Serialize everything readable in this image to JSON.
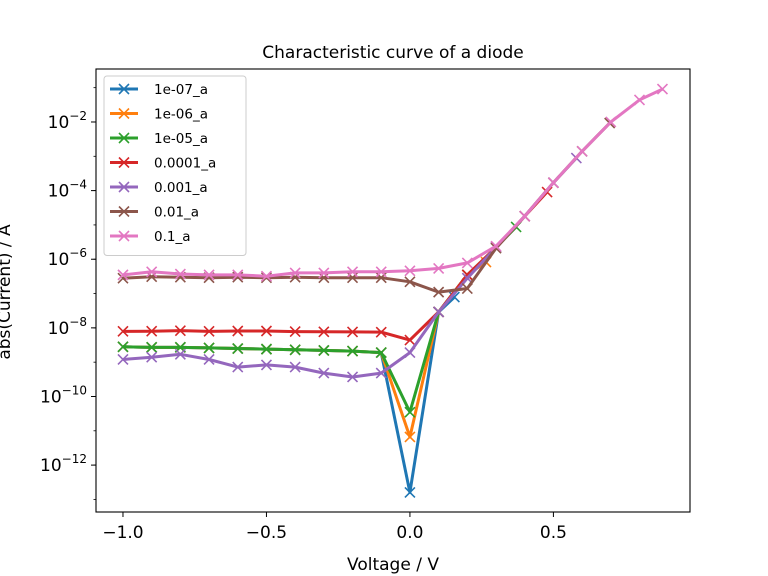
{
  "chart_data": {
    "type": "line",
    "title": "Characteristic curve of a diode",
    "xlabel": "Voltage / V",
    "ylabel": "abs(Current) / A",
    "xscale": "linear",
    "yscale": "log",
    "xlim": [
      -1.094,
      0.976
    ],
    "ylim": [
      4.3e-14,
      0.35
    ],
    "xticks": [
      -1.0,
      -0.5,
      0.0,
      0.5
    ],
    "xtick_labels": [
      "−1.0",
      "−0.5",
      "0.0",
      "0.5"
    ],
    "yticks": [
      1e-12,
      1e-10,
      1e-08,
      1e-06,
      0.0001,
      0.01
    ],
    "ytick_labels": [
      {
        "base": "10",
        "exp": "−12"
      },
      {
        "base": "10",
        "exp": "−10"
      },
      {
        "base": "10",
        "exp": "−8"
      },
      {
        "base": "10",
        "exp": "−6"
      },
      {
        "base": "10",
        "exp": "−4"
      },
      {
        "base": "10",
        "exp": "−2"
      }
    ],
    "grid": false,
    "legend_position": "top-left",
    "marker": "x",
    "series": [
      {
        "name": "1e-07_a",
        "color": "#1f77b4",
        "x": [
          -1.0,
          -0.9,
          -0.8,
          -0.7,
          -0.6,
          -0.5,
          -0.4,
          -0.3,
          -0.2,
          -0.1,
          0.0,
          0.1,
          0.155
        ],
        "y": [
          2.8e-09,
          2.7e-09,
          2.7e-09,
          2.6e-09,
          2.5e-09,
          2.4e-09,
          2.3e-09,
          2.2e-09,
          2.1e-09,
          1.9e-09,
          1.6e-13,
          2.9e-08,
          7.9e-08
        ]
      },
      {
        "name": "1e-06_a",
        "color": "#ff7f0e",
        "x": [
          -1.0,
          -0.9,
          -0.8,
          -0.7,
          -0.6,
          -0.5,
          -0.4,
          -0.3,
          -0.2,
          -0.1,
          0.0,
          0.1,
          0.2,
          0.265
        ],
        "y": [
          2.8e-09,
          2.7e-09,
          2.7e-09,
          2.6e-09,
          2.5e-09,
          2.4e-09,
          2.3e-09,
          2.2e-09,
          2.1e-09,
          1.9e-09,
          6.6e-12,
          2.9e-08,
          3.5e-07,
          8.3e-07
        ]
      },
      {
        "name": "1e-05_a",
        "color": "#2ca02c",
        "x": [
          -1.0,
          -0.9,
          -0.8,
          -0.7,
          -0.6,
          -0.5,
          -0.4,
          -0.3,
          -0.2,
          -0.1,
          0.0,
          0.1,
          0.2,
          0.3,
          0.37
        ],
        "y": [
          2.8e-09,
          2.7e-09,
          2.7e-09,
          2.6e-09,
          2.5e-09,
          2.4e-09,
          2.3e-09,
          2.2e-09,
          2.1e-09,
          1.9e-09,
          3.5e-11,
          2.9e-08,
          3.5e-07,
          2.2e-06,
          8.7e-06
        ]
      },
      {
        "name": "0.0001_a",
        "color": "#d62728",
        "x": [
          -1.0,
          -0.9,
          -0.8,
          -0.7,
          -0.6,
          -0.5,
          -0.4,
          -0.3,
          -0.2,
          -0.1,
          0.0,
          0.1,
          0.2,
          0.3,
          0.4,
          0.478
        ],
        "y": [
          7.9e-09,
          8e-09,
          8.3e-09,
          7.9e-09,
          8.1e-09,
          8.1e-09,
          7.8e-09,
          7.7e-09,
          7.6e-09,
          7.5e-09,
          4.4e-09,
          2.9e-08,
          3.5e-07,
          2.2e-06,
          1.8e-05,
          9.1e-05
        ]
      },
      {
        "name": "0.001_a",
        "color": "#9467bd",
        "x": [
          -1.0,
          -0.9,
          -0.8,
          -0.7,
          -0.6,
          -0.5,
          -0.4,
          -0.3,
          -0.2,
          -0.1,
          0.0,
          0.1,
          0.2,
          0.3,
          0.4,
          0.5,
          0.58
        ],
        "y": [
          1.2e-09,
          1.4e-09,
          1.7e-09,
          1.2e-09,
          7.2e-10,
          8.3e-10,
          7.2e-10,
          4.8e-10,
          3.7e-10,
          4.8e-10,
          1.9e-09,
          2.9e-08,
          2.8e-07,
          2.2e-06,
          1.8e-05,
          0.00017,
          0.00089
        ]
      },
      {
        "name": "0.01_a",
        "color": "#8c564b",
        "x": [
          -1.0,
          -0.9,
          -0.8,
          -0.7,
          -0.6,
          -0.5,
          -0.4,
          -0.3,
          -0.2,
          -0.1,
          0.0,
          0.1,
          0.2,
          0.3,
          0.4,
          0.5,
          0.6,
          0.696
        ],
        "y": [
          2.8e-07,
          3.1e-07,
          3e-07,
          2.9e-07,
          3e-07,
          2.9e-07,
          3e-07,
          2.9e-07,
          2.9e-07,
          2.9e-07,
          2.2e-07,
          1.1e-07,
          1.4e-07,
          2.1e-06,
          1.8e-05,
          0.00017,
          0.0014,
          0.0093
        ]
      },
      {
        "name": "0.1_a",
        "color": "#e377c2",
        "x": [
          -1.0,
          -0.9,
          -0.8,
          -0.7,
          -0.6,
          -0.5,
          -0.4,
          -0.3,
          -0.2,
          -0.1,
          0.0,
          0.1,
          0.2,
          0.3,
          0.4,
          0.5,
          0.6,
          0.7,
          0.8,
          0.88
        ],
        "y": [
          3.5e-07,
          4.3e-07,
          3.7e-07,
          3.5e-07,
          3.5e-07,
          3.2e-07,
          4e-07,
          4e-07,
          4.3e-07,
          4.3e-07,
          4.6e-07,
          5.4e-07,
          7.8e-07,
          2.4e-06,
          1.8e-05,
          0.00017,
          0.0014,
          0.01,
          0.044,
          0.091
        ]
      }
    ]
  }
}
